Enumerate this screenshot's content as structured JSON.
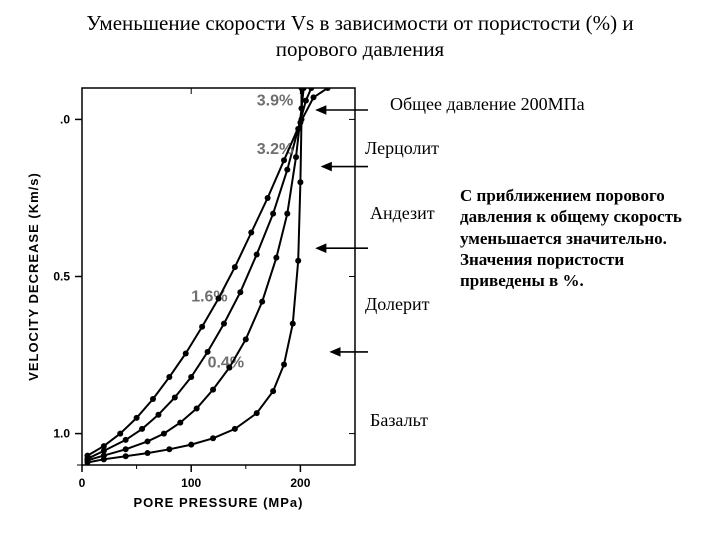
{
  "title_line1": "Уменьшение скорости Vs в зависимости от пористости  (%) и",
  "title_line2": "порового давления",
  "note_total_pressure": "Общее давление 200МПа",
  "description_text": "С приближением порового давления к общему скорость уменьшается значительно. Значения пористости приведены в %.",
  "labels": {
    "lherzolite": "Лерцолит",
    "andesite": "Андезит",
    "dolerite": "Долерит",
    "basalt": "Базальт"
  },
  "chart": {
    "type": "line",
    "background_color": "#ffffff",
    "axis_color": "#000000",
    "line_color": "#000000",
    "percent_label_color": "#6f6f6f",
    "font_family_axes": "Arial, Helvetica, sans-serif",
    "axis_label_fontsize": 13,
    "tick_fontsize": 12,
    "percent_fontsize": 16,
    "line_width": 2,
    "marker_radius": 3,
    "x_label": "PORE PRESSURE  (MPa)",
    "y_label": "VELOCITY DECREASE  (Km/s)",
    "xlim": [
      0,
      250
    ],
    "ylim": [
      1.1,
      -0.1
    ],
    "x_ticks": [
      0,
      100,
      200
    ],
    "y_ticks": [
      1.0,
      0.5,
      0.0
    ],
    "y_extra_tick": 1.1,
    "y_tick_labels_show_leading": [
      0
    ],
    "arrows_color": "#000000",
    "arrows": [
      {
        "for": "lherzolite",
        "y": -0.03,
        "x_from": 350,
        "x_to": 215
      },
      {
        "for": "andesite",
        "y": 0.15,
        "x_from": 350,
        "x_to": 220
      },
      {
        "for": "dolerite",
        "y": 0.41,
        "x_from": 350,
        "x_to": 215
      },
      {
        "for": "basalt",
        "y": 0.74,
        "x_from": 350,
        "x_to": 228
      }
    ],
    "series": [
      {
        "name": "basalt",
        "porosity_label": "0.4%",
        "label_xy": [
          115,
          0.79
        ],
        "points": [
          [
            5,
            1.092
          ],
          [
            20,
            1.082
          ],
          [
            40,
            1.072
          ],
          [
            60,
            1.062
          ],
          [
            80,
            1.05
          ],
          [
            100,
            1.035
          ],
          [
            120,
            1.015
          ],
          [
            140,
            0.985
          ],
          [
            160,
            0.935
          ],
          [
            175,
            0.865
          ],
          [
            185,
            0.78
          ],
          [
            193,
            0.65
          ],
          [
            198,
            0.45
          ],
          [
            200,
            0.2
          ],
          [
            201,
            0.0
          ],
          [
            201,
            -0.1
          ]
        ]
      },
      {
        "name": "dolerite",
        "porosity_label": "1.6%",
        "label_xy": [
          100,
          0.58
        ],
        "points": [
          [
            5,
            1.085
          ],
          [
            20,
            1.07
          ],
          [
            40,
            1.05
          ],
          [
            60,
            1.025
          ],
          [
            75,
            1.0
          ],
          [
            90,
            0.965
          ],
          [
            105,
            0.92
          ],
          [
            120,
            0.86
          ],
          [
            135,
            0.79
          ],
          [
            150,
            0.7
          ],
          [
            165,
            0.58
          ],
          [
            178,
            0.44
          ],
          [
            188,
            0.3
          ],
          [
            196,
            0.12
          ],
          [
            201,
            -0.035
          ],
          [
            203,
            -0.1
          ]
        ]
      },
      {
        "name": "andesite",
        "porosity_label": "3.2%",
        "label_xy": [
          160,
          0.11
        ],
        "points": [
          [
            5,
            1.08
          ],
          [
            20,
            1.055
          ],
          [
            40,
            1.02
          ],
          [
            55,
            0.985
          ],
          [
            70,
            0.94
          ],
          [
            85,
            0.885
          ],
          [
            100,
            0.82
          ],
          [
            115,
            0.74
          ],
          [
            130,
            0.65
          ],
          [
            145,
            0.55
          ],
          [
            160,
            0.43
          ],
          [
            175,
            0.3
          ],
          [
            188,
            0.16
          ],
          [
            198,
            0.03
          ],
          [
            205,
            -0.06
          ],
          [
            210,
            -0.1
          ]
        ]
      },
      {
        "name": "lherzolite",
        "porosity_label": "3.9%",
        "label_xy": [
          160,
          -0.045
        ],
        "points": [
          [
            5,
            1.07
          ],
          [
            20,
            1.04
          ],
          [
            35,
            1.0
          ],
          [
            50,
            0.95
          ],
          [
            65,
            0.89
          ],
          [
            80,
            0.82
          ],
          [
            95,
            0.745
          ],
          [
            110,
            0.66
          ],
          [
            125,
            0.57
          ],
          [
            140,
            0.47
          ],
          [
            155,
            0.36
          ],
          [
            170,
            0.25
          ],
          [
            185,
            0.13
          ],
          [
            200,
            0.01
          ],
          [
            212,
            -0.07
          ],
          [
            225,
            -0.1
          ]
        ]
      }
    ]
  }
}
